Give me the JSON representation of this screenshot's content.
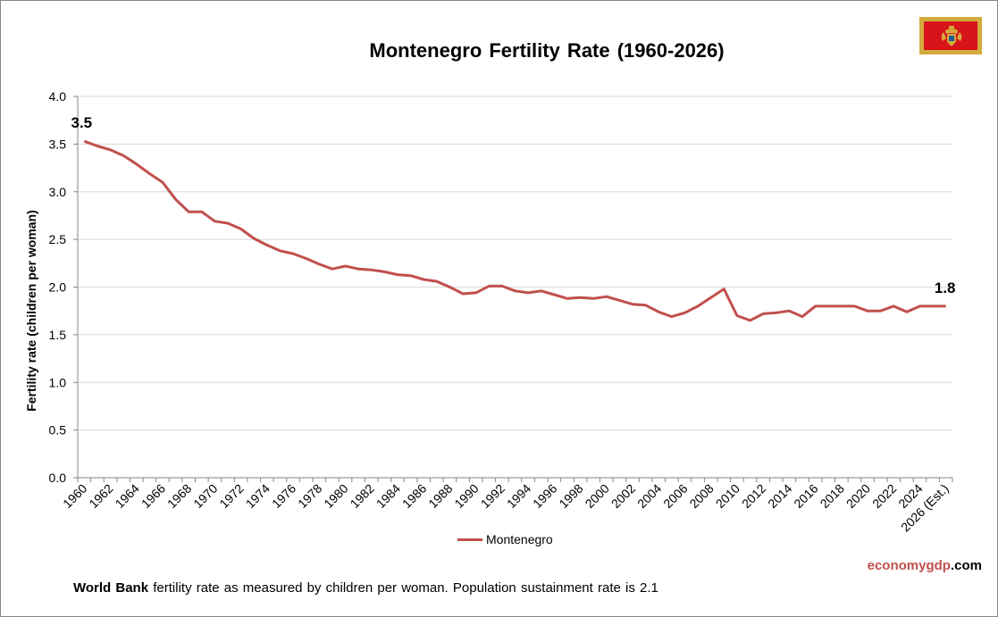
{
  "chart_data": {
    "type": "line",
    "title": "Montenegro Fertility Rate (1960-2026)",
    "ylabel": "Fertility rate (children per woman)",
    "xlabel": "",
    "ylim": [
      0,
      4.0
    ],
    "y_ticks": [
      "0.0",
      "0.5",
      "1.0",
      "1.5",
      "2.0",
      "2.5",
      "3.0",
      "3.5",
      "4.0"
    ],
    "grid": "horizontal",
    "legend_position": "bottom",
    "x": [
      "1960",
      "1961",
      "1962",
      "1963",
      "1964",
      "1965",
      "1966",
      "1967",
      "1968",
      "1969",
      "1970",
      "1971",
      "1972",
      "1973",
      "1974",
      "1975",
      "1976",
      "1977",
      "1978",
      "1979",
      "1980",
      "1981",
      "1982",
      "1983",
      "1984",
      "1985",
      "1986",
      "1987",
      "1988",
      "1989",
      "1990",
      "1991",
      "1992",
      "1993",
      "1994",
      "1995",
      "1996",
      "1997",
      "1998",
      "1999",
      "2000",
      "2001",
      "2002",
      "2003",
      "2004",
      "2005",
      "2006",
      "2007",
      "2008",
      "2009",
      "2010",
      "2011",
      "2012",
      "2013",
      "2014",
      "2015",
      "2016",
      "2017",
      "2018",
      "2019",
      "2020",
      "2021",
      "2022",
      "2023",
      "2024",
      "2025",
      "2026 (Est.)"
    ],
    "x_tick_labels": [
      "1960",
      "1962",
      "1964",
      "1966",
      "1968",
      "1970",
      "1972",
      "1974",
      "1976",
      "1978",
      "1980",
      "1982",
      "1984",
      "1986",
      "1988",
      "1990",
      "1992",
      "1994",
      "1996",
      "1998",
      "2000",
      "2002",
      "2004",
      "2006",
      "2008",
      "2010",
      "2012",
      "2014",
      "2016",
      "2018",
      "2020",
      "2022",
      "2024",
      "2026 (Est.)"
    ],
    "series": [
      {
        "name": "Montenegro",
        "color": "#c0504d",
        "values": [
          3.53,
          3.48,
          3.44,
          3.38,
          3.29,
          3.19,
          3.1,
          2.92,
          2.79,
          2.79,
          2.69,
          2.67,
          2.61,
          2.51,
          2.44,
          2.38,
          2.35,
          2.3,
          2.24,
          2.19,
          2.22,
          2.19,
          2.18,
          2.16,
          2.13,
          2.12,
          2.08,
          2.06,
          2.0,
          1.93,
          1.94,
          2.01,
          2.01,
          1.96,
          1.94,
          1.96,
          1.92,
          1.88,
          1.89,
          1.88,
          1.9,
          1.86,
          1.82,
          1.81,
          1.74,
          1.69,
          1.73,
          1.8,
          1.89,
          1.98,
          1.7,
          1.65,
          1.72,
          1.73,
          1.75,
          1.69,
          1.8,
          1.8,
          1.8,
          1.8,
          1.75,
          1.75,
          1.8,
          1.74,
          1.8,
          1.8,
          1.8
        ]
      }
    ],
    "annotations": [
      {
        "text": "3.5",
        "x": "1960"
      },
      {
        "text": "1.8",
        "x": "2026 (Est.)"
      }
    ]
  },
  "legend": {
    "label": "Montenegro"
  },
  "brand": {
    "part1": "economy",
    "part2": "gdp",
    "part3": ".com"
  },
  "footnote": {
    "strong": "World Bank",
    "text": " fertility rate as measured by children per woman.  Population sustainment rate is 2.1"
  },
  "flag": {
    "country": "Montenegro",
    "icon": "montenegro-flag-icon",
    "colors": {
      "field": "#d7141a",
      "border": "#d3ab3d"
    }
  }
}
